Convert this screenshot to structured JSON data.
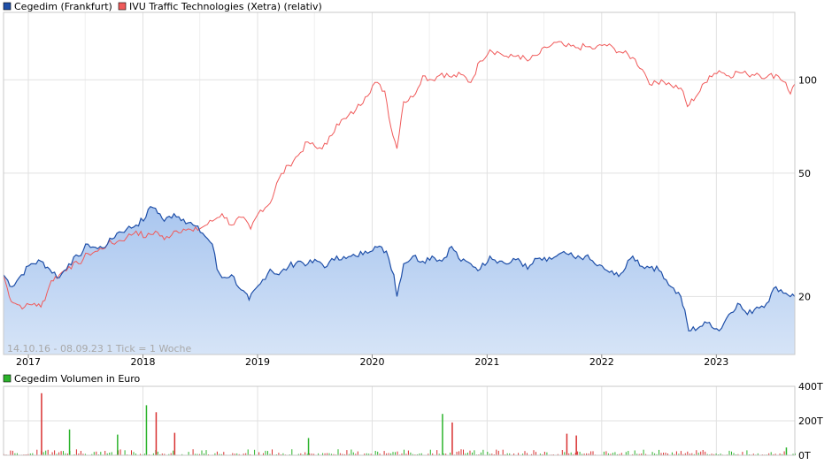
{
  "colors": {
    "blue_line": "#1f4fa8",
    "blue_fill_top": "#a9c6ef",
    "blue_fill_bottom": "#d6e4f7",
    "red_line": "#f05a5a",
    "grid": "#e1e1e1",
    "frame": "#c9c9c9",
    "volume_green": "#2bb32b",
    "volume_red": "#d83030"
  },
  "legend": {
    "series1": "Cegedim (Frankfurt)",
    "series2": "IVU Traffic Technologies (Xetra) (relativ)",
    "volume": "Cegedim Volumen in Euro"
  },
  "info_text": "14.10.16 - 08.09.23   1 Tick = 1 Woche",
  "chart_data": [
    {
      "type": "line",
      "x_range": [
        "2016-10-14",
        "2023-09-08"
      ],
      "x_ticks": [
        "2017",
        "2018",
        "2019",
        "2020",
        "2021",
        "2022",
        "2023"
      ],
      "y_scale": "log",
      "y_ticks": [
        20,
        50,
        100
      ],
      "ylim": [
        13,
        165
      ],
      "grid": true,
      "legend_position": "top-left",
      "series": [
        {
          "name": "Cegedim (Frankfurt)",
          "style": "area",
          "points": [
            [
              "2016-10-14",
              23.5
            ],
            [
              "2016-11-10",
              21.5
            ],
            [
              "2016-12-10",
              23.5
            ],
            [
              "2017-01-10",
              25.5
            ],
            [
              "2017-02-10",
              26.0
            ],
            [
              "2017-03-10",
              24.5
            ],
            [
              "2017-04-10",
              23.0
            ],
            [
              "2017-05-10",
              25.5
            ],
            [
              "2017-06-10",
              27.0
            ],
            [
              "2017-07-10",
              29.5
            ],
            [
              "2017-08-10",
              28.5
            ],
            [
              "2017-09-10",
              29.5
            ],
            [
              "2017-10-10",
              32.0
            ],
            [
              "2017-11-10",
              33.0
            ],
            [
              "2017-12-10",
              34.0
            ],
            [
              "2018-01-10",
              36.0
            ],
            [
              "2018-01-25",
              39.0
            ],
            [
              "2018-02-10",
              38.5
            ],
            [
              "2018-03-10",
              35.0
            ],
            [
              "2018-04-10",
              37.0
            ],
            [
              "2018-05-10",
              35.5
            ],
            [
              "2018-06-10",
              34.0
            ],
            [
              "2018-07-10",
              32.0
            ],
            [
              "2018-08-10",
              29.5
            ],
            [
              "2018-08-25",
              24.5
            ],
            [
              "2018-09-10",
              23.0
            ],
            [
              "2018-10-10",
              23.5
            ],
            [
              "2018-11-10",
              21.0
            ],
            [
              "2018-12-05",
              19.5
            ],
            [
              "2019-01-10",
              22.0
            ],
            [
              "2019-02-10",
              24.5
            ],
            [
              "2019-03-10",
              23.5
            ],
            [
              "2019-04-10",
              25.0
            ],
            [
              "2019-05-10",
              26.0
            ],
            [
              "2019-06-10",
              25.5
            ],
            [
              "2019-07-10",
              26.0
            ],
            [
              "2019-08-10",
              25.0
            ],
            [
              "2019-09-10",
              27.0
            ],
            [
              "2019-10-10",
              26.5
            ],
            [
              "2019-11-10",
              27.0
            ],
            [
              "2019-12-10",
              28.0
            ],
            [
              "2020-01-10",
              29.0
            ],
            [
              "2020-02-15",
              28.0
            ],
            [
              "2020-03-10",
              23.5
            ],
            [
              "2020-03-20",
              20.0
            ],
            [
              "2020-04-10",
              25.5
            ],
            [
              "2020-05-10",
              27.0
            ],
            [
              "2020-06-10",
              26.0
            ],
            [
              "2020-07-10",
              27.0
            ],
            [
              "2020-08-10",
              26.0
            ],
            [
              "2020-09-10",
              29.0
            ],
            [
              "2020-10-10",
              26.0
            ],
            [
              "2020-11-10",
              25.5
            ],
            [
              "2020-12-10",
              24.5
            ],
            [
              "2021-01-10",
              27.0
            ],
            [
              "2021-02-10",
              26.0
            ],
            [
              "2021-03-10",
              25.5
            ],
            [
              "2021-04-10",
              26.5
            ],
            [
              "2021-05-10",
              24.5
            ],
            [
              "2021-06-10",
              26.5
            ],
            [
              "2021-07-10",
              26.0
            ],
            [
              "2021-08-10",
              27.0
            ],
            [
              "2021-09-10",
              27.5
            ],
            [
              "2021-10-10",
              26.5
            ],
            [
              "2021-11-10",
              27.0
            ],
            [
              "2021-12-10",
              25.5
            ],
            [
              "2022-01-10",
              24.5
            ],
            [
              "2022-02-10",
              23.5
            ],
            [
              "2022-03-10",
              24.0
            ],
            [
              "2022-04-10",
              27.0
            ],
            [
              "2022-05-10",
              25.0
            ],
            [
              "2022-06-10",
              25.0
            ],
            [
              "2022-07-10",
              24.0
            ],
            [
              "2022-08-10",
              21.5
            ],
            [
              "2022-09-10",
              20.0
            ],
            [
              "2022-10-05",
              15.5
            ],
            [
              "2022-11-10",
              16.0
            ],
            [
              "2022-12-10",
              16.5
            ],
            [
              "2023-01-10",
              15.5
            ],
            [
              "2023-02-10",
              17.5
            ],
            [
              "2023-03-10",
              19.0
            ],
            [
              "2023-04-10",
              17.5
            ],
            [
              "2023-05-10",
              18.5
            ],
            [
              "2023-06-10",
              19.0
            ],
            [
              "2023-07-10",
              21.5
            ],
            [
              "2023-08-10",
              20.5
            ],
            [
              "2023-09-08",
              20.0
            ]
          ]
        },
        {
          "name": "IVU Traffic Technologies (Xetra) (relativ)",
          "style": "line",
          "points": [
            [
              "2016-10-14",
              23.5
            ],
            [
              "2016-11-01",
              20.0
            ],
            [
              "2016-11-20",
              19.0
            ],
            [
              "2016-12-20",
              18.5
            ],
            [
              "2017-01-20",
              19.0
            ],
            [
              "2017-02-10",
              18.5
            ],
            [
              "2017-03-01",
              20.5
            ],
            [
              "2017-03-15",
              22.5
            ],
            [
              "2017-04-10",
              23.5
            ],
            [
              "2017-05-10",
              25.0
            ],
            [
              "2017-06-10",
              25.5
            ],
            [
              "2017-07-10",
              27.5
            ],
            [
              "2017-08-10",
              28.0
            ],
            [
              "2017-09-10",
              29.5
            ],
            [
              "2017-10-10",
              30.0
            ],
            [
              "2017-11-10",
              31.0
            ],
            [
              "2017-12-10",
              32.5
            ],
            [
              "2018-01-10",
              31.0
            ],
            [
              "2018-02-10",
              32.5
            ],
            [
              "2018-03-10",
              30.5
            ],
            [
              "2018-04-10",
              32.5
            ],
            [
              "2018-05-10",
              33.0
            ],
            [
              "2018-06-10",
              32.5
            ],
            [
              "2018-07-10",
              33.5
            ],
            [
              "2018-08-10",
              35.0
            ],
            [
              "2018-09-10",
              37.0
            ],
            [
              "2018-10-10",
              34.0
            ],
            [
              "2018-11-10",
              36.0
            ],
            [
              "2018-12-10",
              33.0
            ],
            [
              "2019-01-10",
              38.0
            ],
            [
              "2019-02-10",
              40.0
            ],
            [
              "2019-03-10",
              48.0
            ],
            [
              "2019-04-10",
              53.0
            ],
            [
              "2019-05-10",
              57.0
            ],
            [
              "2019-06-10",
              63.0
            ],
            [
              "2019-07-10",
              60.0
            ],
            [
              "2019-08-10",
              62.0
            ],
            [
              "2019-09-10",
              72.0
            ],
            [
              "2019-10-10",
              75.0
            ],
            [
              "2019-11-10",
              80.0
            ],
            [
              "2019-12-10",
              88.0
            ],
            [
              "2020-01-10",
              98.0
            ],
            [
              "2020-02-10",
              92.0
            ],
            [
              "2020-03-01",
              70.0
            ],
            [
              "2020-03-20",
              60.0
            ],
            [
              "2020-04-10",
              85.0
            ],
            [
              "2020-05-10",
              88.0
            ],
            [
              "2020-06-10",
              103.0
            ],
            [
              "2020-07-10",
              100.0
            ],
            [
              "2020-08-10",
              105.0
            ],
            [
              "2020-09-10",
              102.0
            ],
            [
              "2020-10-10",
              104.0
            ],
            [
              "2020-11-10",
              98.0
            ],
            [
              "2020-12-10",
              115.0
            ],
            [
              "2021-01-10",
              125.0
            ],
            [
              "2021-02-10",
              122.0
            ],
            [
              "2021-03-10",
              118.0
            ],
            [
              "2021-04-10",
              120.0
            ],
            [
              "2021-05-10",
              115.0
            ],
            [
              "2021-06-10",
              120.0
            ],
            [
              "2021-07-10",
              127.0
            ],
            [
              "2021-08-10",
              132.0
            ],
            [
              "2021-09-10",
              128.0
            ],
            [
              "2021-10-10",
              127.0
            ],
            [
              "2021-11-10",
              128.0
            ],
            [
              "2021-12-10",
              126.0
            ],
            [
              "2022-01-10",
              130.0
            ],
            [
              "2022-02-10",
              126.0
            ],
            [
              "2022-03-10",
              122.0
            ],
            [
              "2022-04-10",
              118.0
            ],
            [
              "2022-05-10",
              108.0
            ],
            [
              "2022-06-10",
              96.0
            ],
            [
              "2022-07-10",
              100.0
            ],
            [
              "2022-08-10",
              96.0
            ],
            [
              "2022-09-10",
              94.0
            ],
            [
              "2022-10-01",
              82.0
            ],
            [
              "2022-11-10",
              92.0
            ],
            [
              "2022-12-10",
              103.0
            ],
            [
              "2023-01-10",
              107.0
            ],
            [
              "2023-02-10",
              103.0
            ],
            [
              "2023-03-10",
              106.0
            ],
            [
              "2023-04-10",
              104.0
            ],
            [
              "2023-05-10",
              105.0
            ],
            [
              "2023-06-10",
              102.0
            ],
            [
              "2023-07-10",
              104.0
            ],
            [
              "2023-08-10",
              98.0
            ],
            [
              "2023-08-25",
              90.0
            ],
            [
              "2023-09-08",
              97.0
            ]
          ]
        }
      ]
    },
    {
      "type": "bar",
      "title": "Cegedim Volumen in Euro",
      "y_ticks": [
        "0T",
        "200T",
        "400T"
      ],
      "ylim": [
        0,
        400
      ],
      "unit": "T (thousand EUR)",
      "spikes": [
        {
          "date": "2017-02-10",
          "value": 360,
          "color": "red"
        },
        {
          "date": "2018-01-10",
          "value": 290,
          "color": "green"
        },
        {
          "date": "2018-02-10",
          "value": 250,
          "color": "red"
        },
        {
          "date": "2020-08-10",
          "value": 240,
          "color": "green"
        },
        {
          "date": "2020-09-10",
          "value": 190,
          "color": "red"
        },
        {
          "date": "2017-05-10",
          "value": 150,
          "color": "green"
        },
        {
          "date": "2018-04-10",
          "value": 130,
          "color": "red"
        },
        {
          "date": "2017-10-10",
          "value": 120,
          "color": "green"
        },
        {
          "date": "2021-09-10",
          "value": 125,
          "color": "red"
        },
        {
          "date": "2021-10-10",
          "value": 115,
          "color": "red"
        },
        {
          "date": "2019-06-10",
          "value": 100,
          "color": "green"
        },
        {
          "date": "2023-08-10",
          "value": 45,
          "color": "green"
        }
      ]
    }
  ]
}
